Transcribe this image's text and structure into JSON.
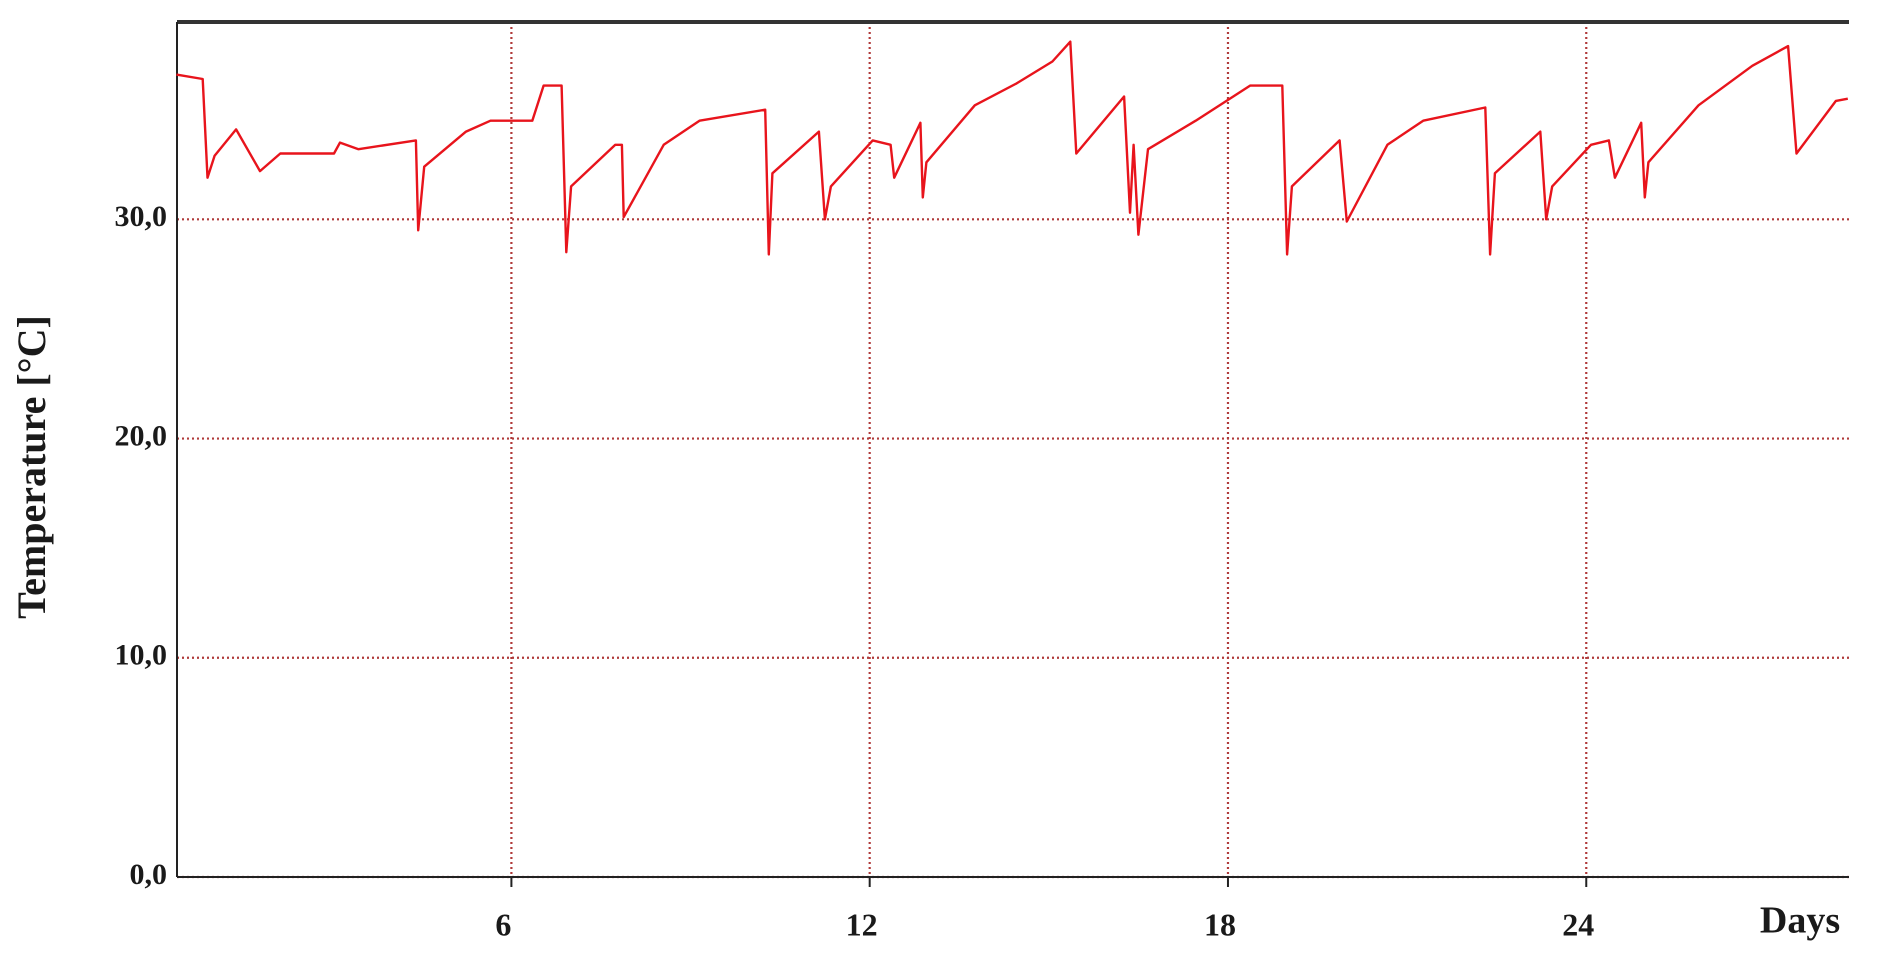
{
  "chart_data": {
    "type": "line",
    "y_label": "Temperature [°C]",
    "x_label": "Days",
    "xlim": [
      0.4,
      28.4
    ],
    "xticks": [
      6,
      12,
      18,
      24
    ],
    "ylim": [
      0,
      39
    ],
    "yticks": [
      {
        "value": 0,
        "label": "0,0"
      },
      {
        "value": 10,
        "label": "10,0"
      },
      {
        "value": 20,
        "label": "20,0"
      },
      {
        "value": 30,
        "label": "30,0"
      }
    ],
    "grid": true,
    "series": [
      {
        "color": "#e8141c",
        "x": [
          0.39,
          0.83,
          0.91,
          1.03,
          1.39,
          1.79,
          2.13,
          3.03,
          3.13,
          3.44,
          4.4,
          4.44,
          4.54,
          5.24,
          5.65,
          6.35,
          6.54,
          6.84,
          6.92,
          7.0,
          7.74,
          7.85,
          7.88,
          8.55,
          9.15,
          10.25,
          10.31,
          10.37,
          11.15,
          11.25,
          11.35,
          12.05,
          12.35,
          12.41,
          12.85,
          12.89,
          12.95,
          13.76,
          14.46,
          15.06,
          15.36,
          15.46,
          16.26,
          16.36,
          16.42,
          16.5,
          16.66,
          17.46,
          18.37,
          18.91,
          18.99,
          19.07,
          19.87,
          19.99,
          20.67,
          21.27,
          22.31,
          22.39,
          22.47,
          23.23,
          23.33,
          23.43,
          24.08,
          24.38,
          24.48,
          24.92,
          24.98,
          25.04,
          25.88,
          26.78,
          27.38,
          27.52,
          28.18,
          28.38
        ],
        "values": [
          36.6,
          36.4,
          31.9,
          32.9,
          34.1,
          32.2,
          33.0,
          33.0,
          33.5,
          33.2,
          33.6,
          29.5,
          32.4,
          34.0,
          34.5,
          34.5,
          36.1,
          36.1,
          28.5,
          31.5,
          33.4,
          33.4,
          30.1,
          33.4,
          34.5,
          35.0,
          28.4,
          32.1,
          34.0,
          30.0,
          31.5,
          33.6,
          33.4,
          31.9,
          34.4,
          31.0,
          32.6,
          35.2,
          36.2,
          37.2,
          38.1,
          33.0,
          35.6,
          30.3,
          33.4,
          29.3,
          33.2,
          34.5,
          36.1,
          36.1,
          28.4,
          31.5,
          33.6,
          29.9,
          33.4,
          34.5,
          35.1,
          28.4,
          32.1,
          34.0,
          30.0,
          31.5,
          33.4,
          33.6,
          31.9,
          34.4,
          31.0,
          32.6,
          35.2,
          37.0,
          37.9,
          33.0,
          35.4,
          35.5
        ]
      }
    ]
  }
}
